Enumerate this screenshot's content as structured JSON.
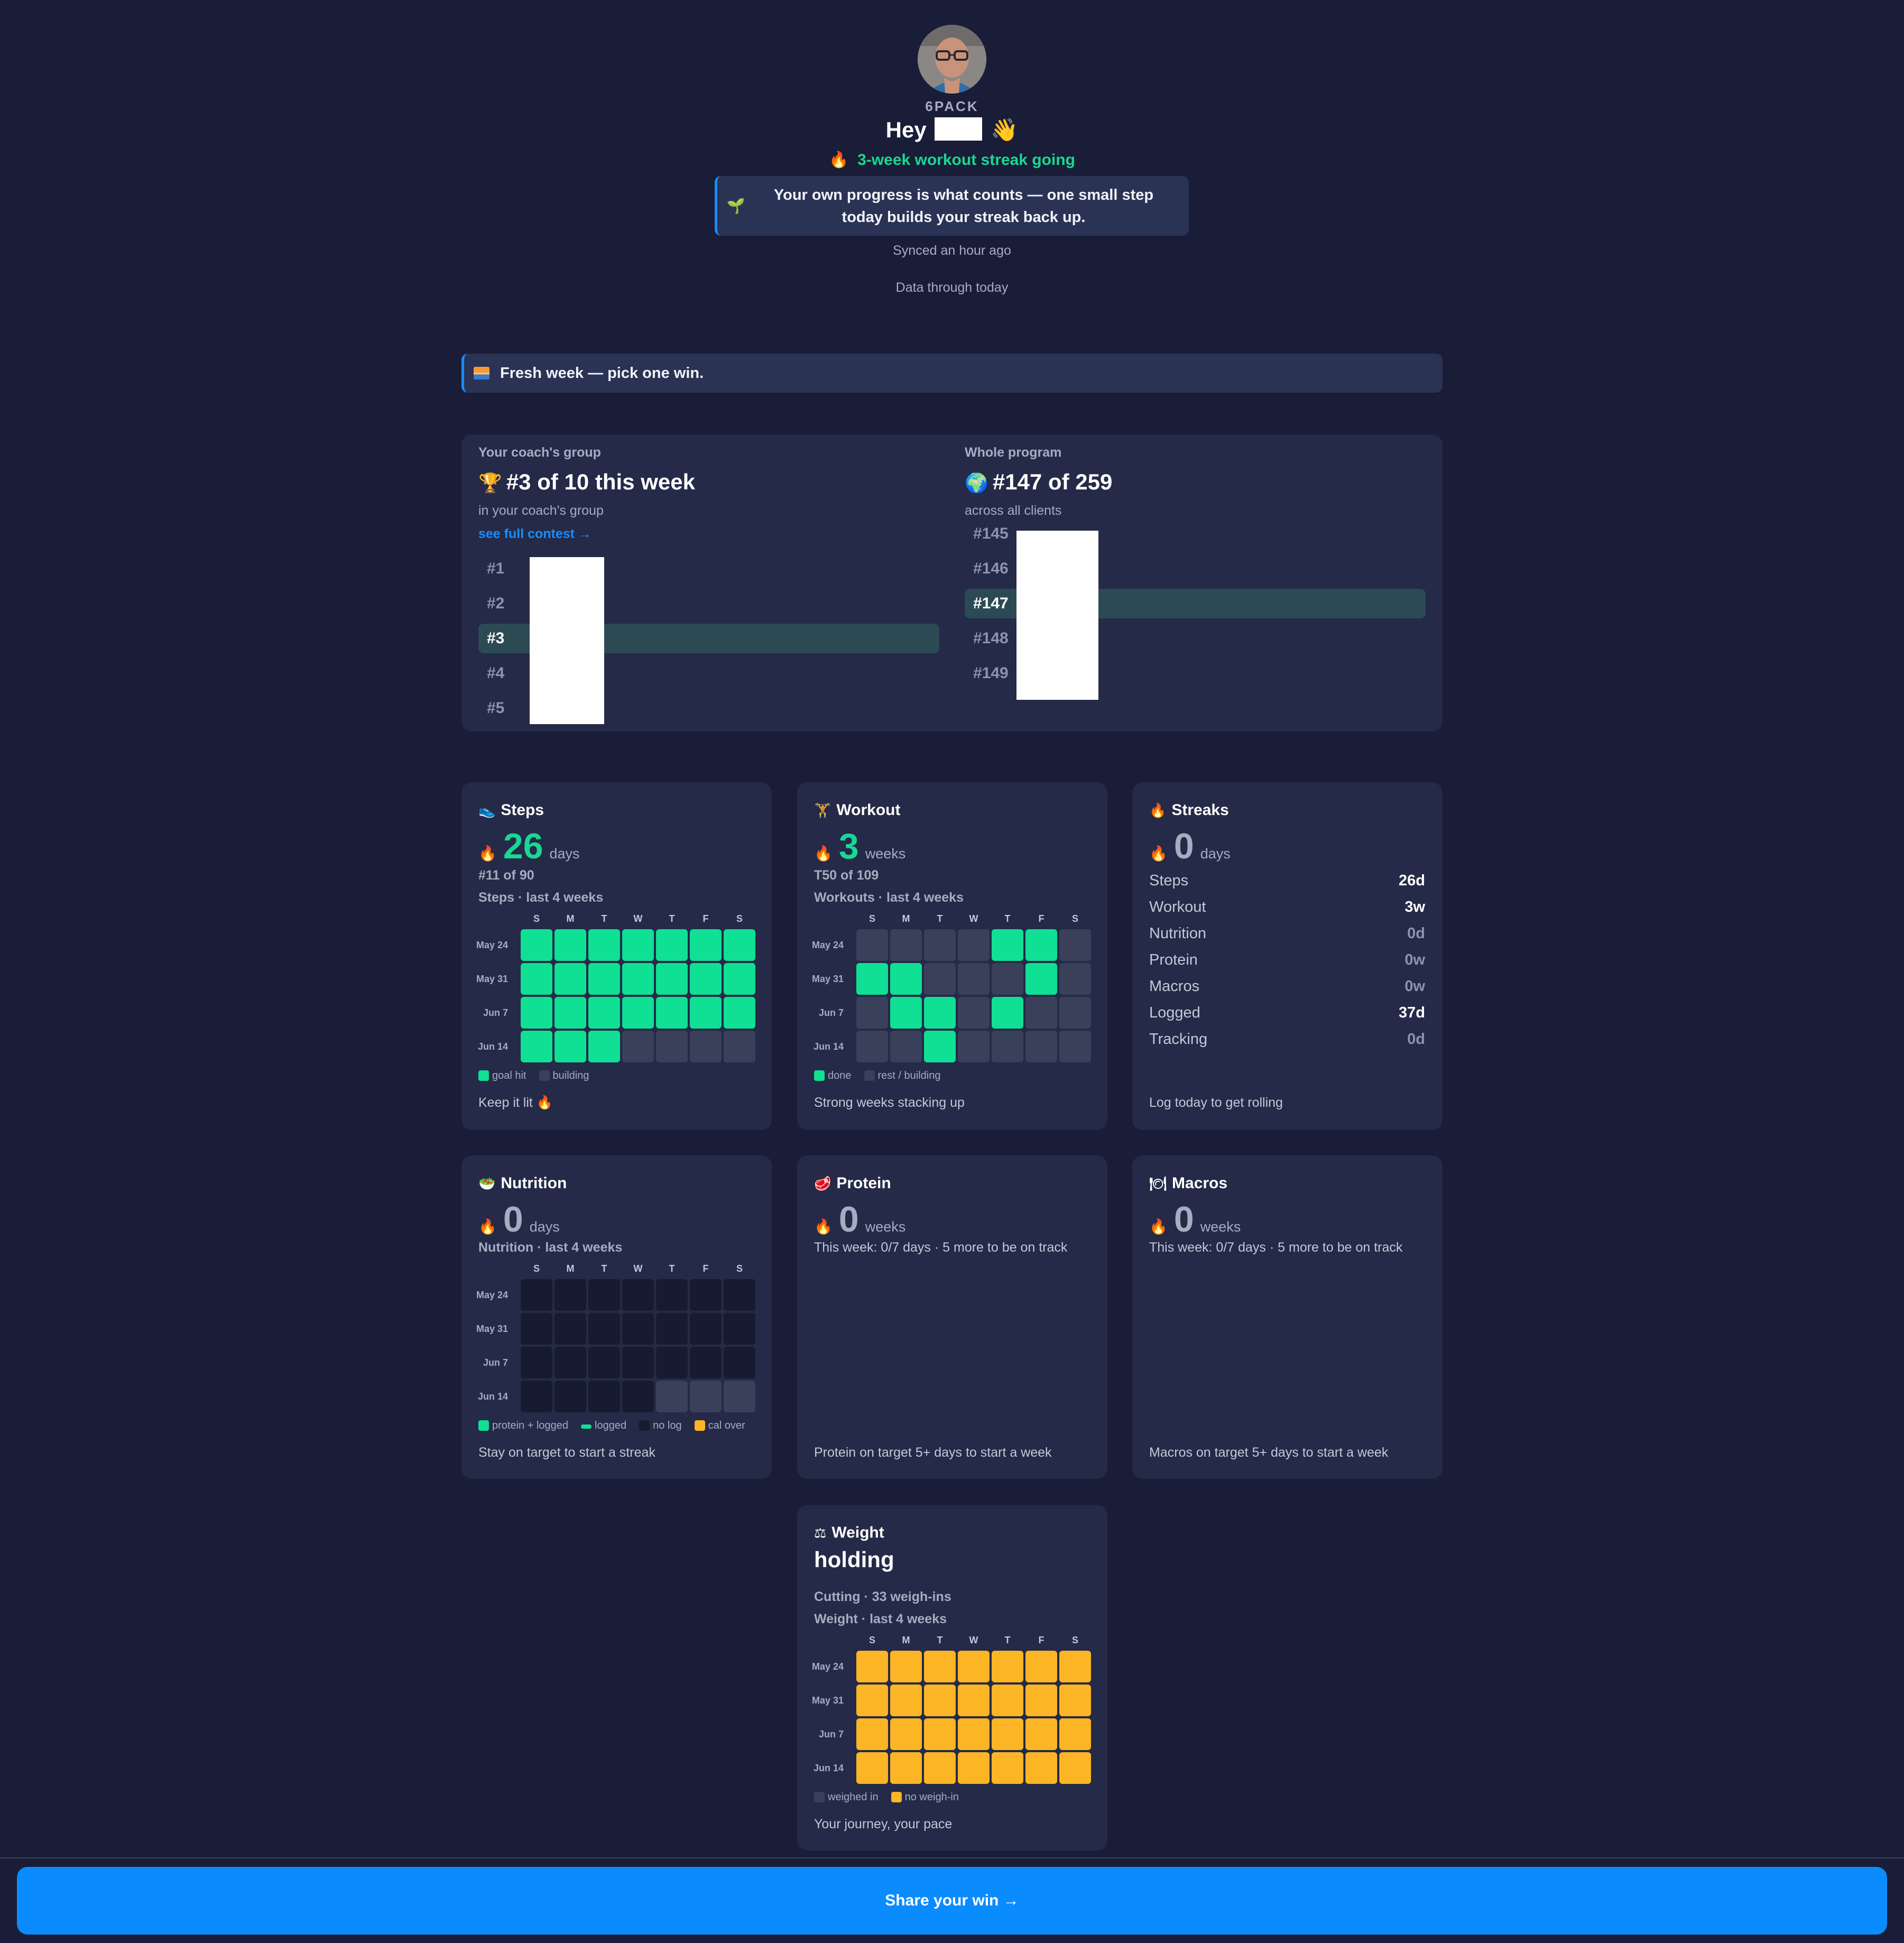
{
  "header": {
    "brand": "6PACK",
    "greeting_prefix": "Hey",
    "greeting_emoji": "👋",
    "streak_icon": "🔥",
    "streak_text": "3-week workout streak going",
    "banner_icon": "🌱",
    "banner_text": "Your own progress is what counts — one small step today builds your streak back up.",
    "synced": "Synced an hour ago",
    "data_through": "Data through today"
  },
  "fresh_week": {
    "text": "Fresh week — pick one win."
  },
  "ranks": {
    "coach": {
      "label": "Your coach's group",
      "icon": "🏆",
      "title": "#3 of 10 this week",
      "sub": "in your coach's group",
      "link": "see full contest →",
      "rows": [
        "#1",
        "#2",
        "#3",
        "#4",
        "#5"
      ],
      "me_index": 2
    },
    "program": {
      "label": "Whole program",
      "icon": "🌍",
      "title": "#147 of 259",
      "sub": "across all clients",
      "rows": [
        "#145",
        "#146",
        "#147",
        "#148",
        "#149"
      ],
      "me_index": 2
    }
  },
  "weeks": [
    "May 24",
    "May 31",
    "Jun 7",
    "Jun 14"
  ],
  "dow": [
    "S",
    "M",
    "T",
    "W",
    "T",
    "F",
    "S"
  ],
  "steps": {
    "icon": "👟",
    "title": "Steps",
    "flame": "🔥",
    "value": "26",
    "unit": "days",
    "rank": "#11 of 90",
    "caption": "Steps · last 4 weeks",
    "grid": [
      [
        "g",
        "g",
        "g",
        "g",
        "g",
        "g",
        "g"
      ],
      [
        "g",
        "g",
        "g",
        "g",
        "g",
        "g",
        "g"
      ],
      [
        "g",
        "g",
        "g",
        "g",
        "g",
        "g",
        "g"
      ],
      [
        "g",
        "g",
        "g",
        "x",
        "x",
        "x",
        "x"
      ]
    ],
    "legend": [
      {
        "color": "green",
        "label": "goal hit"
      },
      {
        "color": "grey",
        "label": "building"
      }
    ],
    "footer": "Keep it lit 🔥"
  },
  "workout": {
    "icon": "🏋",
    "title": "Workout",
    "flame": "🔥",
    "value": "3",
    "unit": "weeks",
    "rank": "T50 of 109",
    "caption": "Workouts · last 4 weeks",
    "grid": [
      [
        "x",
        "x",
        "x",
        "x",
        "g",
        "g",
        "x"
      ],
      [
        "g",
        "g",
        "x",
        "x",
        "x",
        "g",
        "x"
      ],
      [
        "x",
        "g",
        "g",
        "x",
        "g",
        "x",
        "x"
      ],
      [
        "x",
        "x",
        "g",
        "x",
        "x",
        "x",
        "x"
      ]
    ],
    "legend": [
      {
        "color": "green",
        "label": "done"
      },
      {
        "color": "grey",
        "label": "rest / building"
      }
    ],
    "footer": "Strong weeks stacking up"
  },
  "streaks": {
    "icon": "🔥",
    "title": "Streaks",
    "flame": "🔥",
    "value": "0",
    "unit": "days",
    "rows": [
      {
        "k": "Steps",
        "v": "26d",
        "hi": true
      },
      {
        "k": "Workout",
        "v": "3w",
        "hi": true
      },
      {
        "k": "Nutrition",
        "v": "0d",
        "hi": false
      },
      {
        "k": "Protein",
        "v": "0w",
        "hi": false
      },
      {
        "k": "Macros",
        "v": "0w",
        "hi": false
      },
      {
        "k": "Logged",
        "v": "37d",
        "hi": true
      },
      {
        "k": "Tracking",
        "v": "0d",
        "hi": false
      }
    ],
    "footer": "Log today to get rolling"
  },
  "nutrition": {
    "icon": "🥗",
    "title": "Nutrition",
    "flame": "🔥",
    "value": "0",
    "unit": "days",
    "caption": "Nutrition · last 4 weeks",
    "grid": [
      [
        "d",
        "d",
        "d",
        "d",
        "d",
        "d",
        "d"
      ],
      [
        "d",
        "d",
        "d",
        "d",
        "d",
        "d",
        "d"
      ],
      [
        "d",
        "d",
        "d",
        "d",
        "d",
        "d",
        "d"
      ],
      [
        "d",
        "d",
        "d",
        "d",
        "x",
        "x",
        "x"
      ]
    ],
    "legend": [
      {
        "color": "green",
        "label": "protein + logged"
      },
      {
        "color": "greenbar",
        "label": "logged"
      },
      {
        "color": "dark",
        "label": "no log"
      },
      {
        "color": "yellow",
        "label": "cal over"
      }
    ],
    "footer": "Stay on target to start a streak"
  },
  "protein": {
    "icon": "🥩",
    "title": "Protein",
    "flame": "🔥",
    "value": "0",
    "unit": "weeks",
    "week": "This week: 0/7 days · 5 more to be on track",
    "footer": "Protein on target 5+ days to start a week"
  },
  "macros": {
    "icon": "🍽",
    "title": "Macros",
    "flame": "🔥",
    "value": "0",
    "unit": "weeks",
    "week": "This week: 0/7 days · 5 more to be on track",
    "footer": "Macros on target 5+ days to start a week"
  },
  "weight": {
    "icon": "⚖",
    "title": "Weight",
    "status": "holding",
    "meta": "Cutting · 33 weigh-ins",
    "caption": "Weight · last 4 weeks",
    "grid": [
      [
        "y",
        "y",
        "y",
        "y",
        "y",
        "y",
        "y"
      ],
      [
        "y",
        "y",
        "y",
        "y",
        "y",
        "y",
        "y"
      ],
      [
        "y",
        "y",
        "y",
        "y",
        "y",
        "y",
        "y"
      ],
      [
        "y",
        "y",
        "y",
        "y",
        "y",
        "y",
        "y"
      ]
    ],
    "legend": [
      {
        "color": "grey",
        "label": "weighed in"
      },
      {
        "color": "yellow",
        "label": "no weigh-in"
      }
    ],
    "footer": "Your journey, your pace"
  },
  "share": {
    "label": "Share your win →"
  }
}
